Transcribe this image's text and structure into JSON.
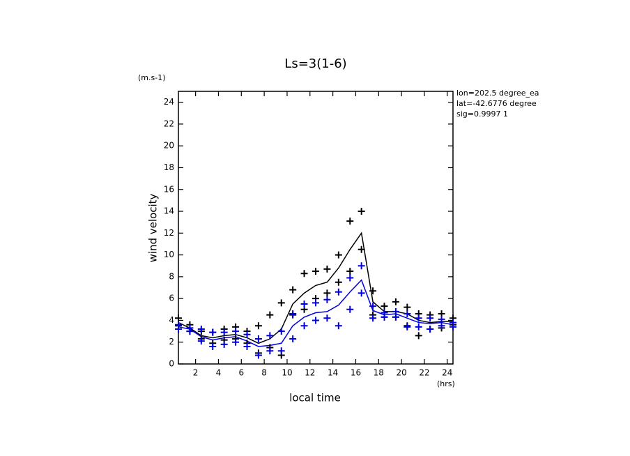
{
  "chart_data": {
    "type": "line",
    "title": "Ls=3(1-6)",
    "y_units": "(m.s-1)",
    "y_label": "wind velocity",
    "x_label": "local time",
    "x_units": "(hrs)",
    "annotations": [
      "lon=202.5 degree_ea",
      "lat=-42.6776 degree",
      "sig=0.9997 1"
    ],
    "x": [
      0.5,
      1.5,
      2.5,
      3.5,
      4.5,
      5.5,
      6.5,
      7.5,
      8.5,
      9.5,
      10.5,
      11.5,
      12.5,
      13.5,
      14.5,
      15.5,
      16.5,
      17.5,
      18.5,
      19.5,
      20.5,
      21.5,
      22.5,
      23.5,
      24.5
    ],
    "series": [
      {
        "style": "line",
        "color": "#000000",
        "values": [
          3.8,
          3.3,
          2.6,
          2.4,
          2.6,
          2.7,
          2.4,
          1.9,
          2.3,
          3.2,
          5.5,
          6.5,
          7.2,
          7.5,
          8.8,
          10.5,
          12.0,
          5.7,
          4.8,
          4.8,
          4.6,
          4.0,
          3.8,
          3.9,
          3.9
        ]
      },
      {
        "style": "line",
        "color": "#0000e0",
        "values": [
          3.4,
          3.2,
          2.5,
          2.2,
          2.4,
          2.5,
          2.1,
          1.6,
          1.7,
          1.9,
          3.5,
          4.3,
          4.7,
          4.8,
          5.4,
          6.6,
          7.7,
          4.9,
          4.5,
          4.6,
          4.2,
          3.8,
          3.7,
          3.8,
          3.6
        ]
      },
      {
        "style": "plus",
        "color": "#000000",
        "values": [
          4.2,
          3.6,
          3.0,
          2.9,
          3.2,
          3.4,
          3.0,
          3.5,
          4.5,
          5.6,
          6.8,
          8.3,
          8.5,
          8.7,
          10.0,
          13.1,
          14.0,
          6.7,
          5.3,
          5.7,
          5.2,
          4.6,
          4.5,
          4.6,
          4.2
        ]
      },
      {
        "style": "plus",
        "color": "#000000",
        "values": [
          3.5,
          3.0,
          2.3,
          1.9,
          2.2,
          2.3,
          1.9,
          1.0,
          1.5,
          0.8,
          4.5,
          5.0,
          6.0,
          6.5,
          7.5,
          8.5,
          10.5,
          4.5,
          4.3,
          4.3,
          3.5,
          2.6,
          3.2,
          3.3,
          3.6
        ]
      },
      {
        "style": "plus",
        "color": "#0000e0",
        "values": [
          3.6,
          3.3,
          3.2,
          2.9,
          2.9,
          3.0,
          2.7,
          2.3,
          2.6,
          3.0,
          4.6,
          5.5,
          5.6,
          5.9,
          6.6,
          7.9,
          9.0,
          5.3,
          4.7,
          4.8,
          4.6,
          4.2,
          4.2,
          4.1,
          3.8
        ]
      },
      {
        "style": "plus",
        "color": "#0000e0",
        "values": [
          3.2,
          3.0,
          2.1,
          1.6,
          1.8,
          2.0,
          1.6,
          0.8,
          1.2,
          1.2,
          2.3,
          3.5,
          4.0,
          4.2,
          3.5,
          5.0,
          6.5,
          4.2,
          4.3,
          4.3,
          3.4,
          3.4,
          3.2,
          3.5,
          3.4
        ]
      }
    ],
    "xlim": [
      0.5,
      24.5
    ],
    "ylim": [
      0,
      25
    ],
    "xticks": [
      2,
      4,
      6,
      8,
      10,
      12,
      14,
      16,
      18,
      20,
      22,
      24
    ],
    "yticks": [
      0,
      2,
      4,
      6,
      8,
      10,
      12,
      14,
      16,
      18,
      20,
      22,
      24
    ]
  }
}
